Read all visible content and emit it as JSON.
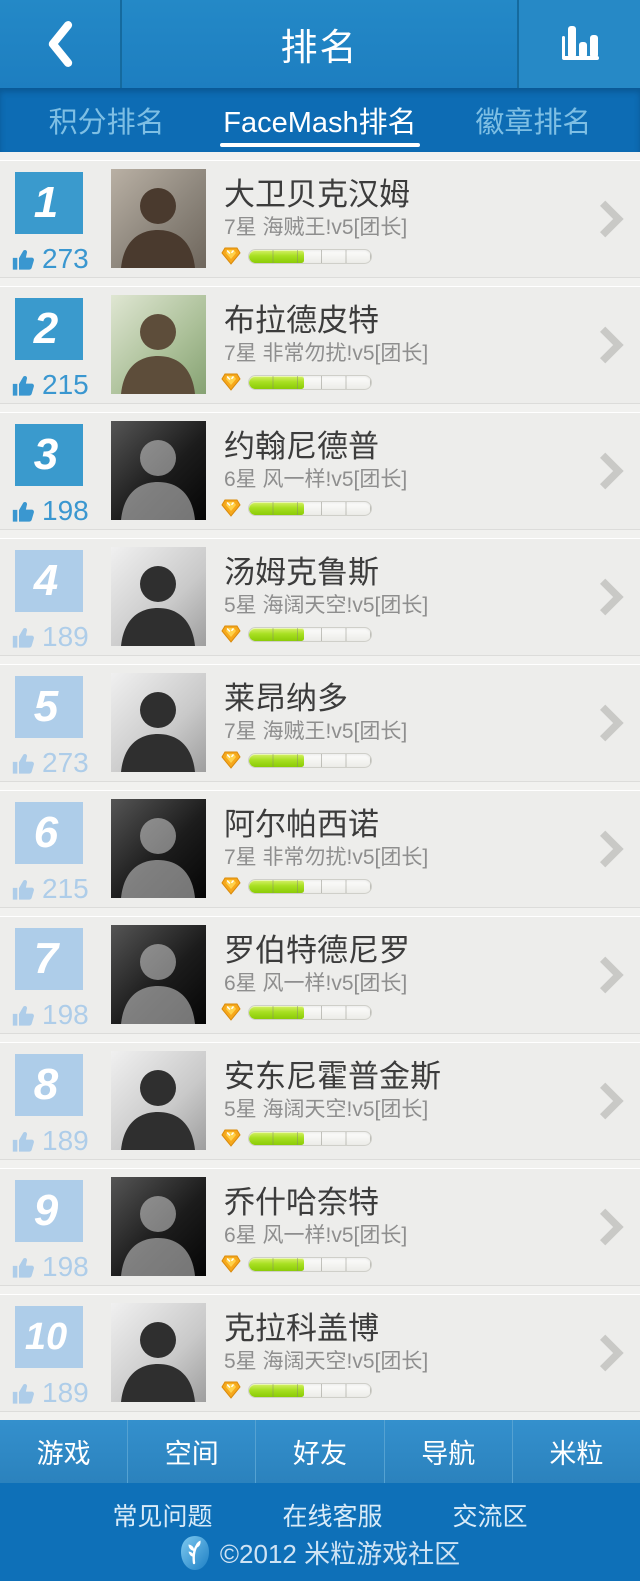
{
  "header": {
    "title": "排名"
  },
  "tabs": [
    {
      "label": "积分排名",
      "active": false
    },
    {
      "label": "FaceMash排名",
      "active": true
    },
    {
      "label": "徽章排名",
      "active": false
    }
  ],
  "colors": {
    "header_blue": "#1f82c2",
    "tabbar_blue": "#0d6cb4",
    "rank_top_blue": "#3a9acd",
    "rank_light_blue": "#aecde9",
    "progress_green": "#9ad413",
    "gem_orange": "#f6a81c",
    "nav_blue": "#2e86c3",
    "footer_blue": "#0e70b8"
  },
  "list": {
    "items": [
      {
        "rank": "1",
        "likes": "273",
        "name": "大卫贝克汉姆",
        "subtitle": "7星 海贼王!v5[团长]",
        "progress_pct": 45,
        "tier": "top",
        "photo": "color-warm"
      },
      {
        "rank": "2",
        "likes": "215",
        "name": "布拉德皮特",
        "subtitle": "7星 非常勿扰!v5[团长]",
        "progress_pct": 45,
        "tier": "top",
        "photo": "color-cool"
      },
      {
        "rank": "3",
        "likes": "198",
        "name": "约翰尼德普",
        "subtitle": "6星 风一样!v5[团长]",
        "progress_pct": 45,
        "tier": "top",
        "photo": "bw-dark"
      },
      {
        "rank": "4",
        "likes": "189",
        "name": "汤姆克鲁斯",
        "subtitle": "5星 海阔天空!v5[团长]",
        "progress_pct": 45,
        "tier": "normal",
        "photo": "bw-light"
      },
      {
        "rank": "5",
        "likes": "273",
        "name": "莱昂纳多",
        "subtitle": "7星 海贼王!v5[团长]",
        "progress_pct": 45,
        "tier": "normal",
        "photo": "bw-light"
      },
      {
        "rank": "6",
        "likes": "215",
        "name": "阿尔帕西诺",
        "subtitle": "7星 非常勿扰!v5[团长]",
        "progress_pct": 45,
        "tier": "normal",
        "photo": "bw-dark"
      },
      {
        "rank": "7",
        "likes": "198",
        "name": "罗伯特德尼罗",
        "subtitle": "6星 风一样!v5[团长]",
        "progress_pct": 45,
        "tier": "normal",
        "photo": "bw-dark"
      },
      {
        "rank": "8",
        "likes": "189",
        "name": "安东尼霍普金斯",
        "subtitle": "5星 海阔天空!v5[团长]",
        "progress_pct": 45,
        "tier": "normal",
        "photo": "bw-light"
      },
      {
        "rank": "9",
        "likes": "198",
        "name": "乔什哈奈特",
        "subtitle": "6星 风一样!v5[团长]",
        "progress_pct": 45,
        "tier": "normal",
        "photo": "bw-dark"
      },
      {
        "rank": "10",
        "likes": "189",
        "name": "克拉科盖博",
        "subtitle": "5星 海阔天空!v5[团长]",
        "progress_pct": 45,
        "tier": "normal",
        "photo": "bw-light"
      }
    ]
  },
  "bottom_nav": {
    "items": [
      "游戏",
      "空间",
      "好友",
      "导航",
      "米粒"
    ]
  },
  "footer": {
    "links": [
      "常见问题",
      "在线客服",
      "交流区"
    ],
    "copyright": "©2012 米粒游戏社区"
  }
}
